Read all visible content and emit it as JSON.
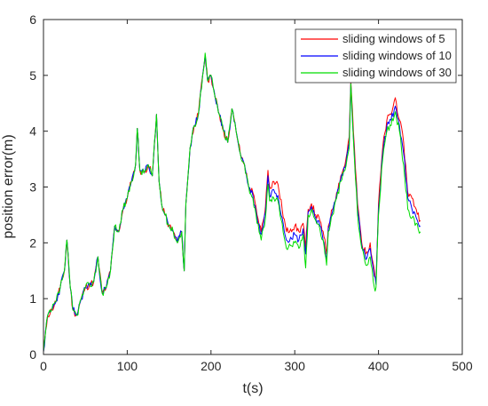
{
  "chart_data": {
    "type": "line",
    "title": "",
    "xlabel": "t(s)",
    "ylabel": "position error(m)",
    "xlim": [
      0,
      500
    ],
    "ylim": [
      0,
      6
    ],
    "xticks": [
      0,
      100,
      200,
      300,
      400,
      500
    ],
    "yticks": [
      0,
      1,
      2,
      3,
      4,
      5,
      6
    ],
    "grid": false,
    "legend_position": "top-right",
    "x": [
      0,
      5,
      10,
      15,
      20,
      25,
      28,
      32,
      35,
      40,
      45,
      50,
      55,
      60,
      65,
      70,
      75,
      80,
      85,
      90,
      95,
      100,
      105,
      110,
      112,
      115,
      120,
      125,
      130,
      135,
      138,
      141,
      145,
      150,
      155,
      160,
      165,
      168,
      170,
      175,
      180,
      185,
      190,
      193,
      196,
      200,
      205,
      210,
      215,
      220,
      225,
      230,
      235,
      240,
      245,
      250,
      255,
      260,
      265,
      268,
      270,
      275,
      280,
      285,
      290,
      295,
      300,
      305,
      310,
      313,
      316,
      320,
      325,
      330,
      335,
      338,
      340,
      345,
      350,
      355,
      360,
      365,
      367,
      370,
      375,
      380,
      385,
      390,
      395,
      397,
      400,
      405,
      410,
      415,
      420,
      425,
      430,
      435,
      440,
      445,
      450
    ],
    "series": [
      {
        "name": "sliding windows of 5",
        "color": "#ff0000",
        "values": [
          0.05,
          0.7,
          0.8,
          0.95,
          1.2,
          1.5,
          2.05,
          1.2,
          0.8,
          0.7,
          1.0,
          1.2,
          1.25,
          1.3,
          1.75,
          1.1,
          1.2,
          1.5,
          2.3,
          2.2,
          2.6,
          2.8,
          3.1,
          3.4,
          4.05,
          3.3,
          3.25,
          3.4,
          3.2,
          4.3,
          3.1,
          2.7,
          2.5,
          2.3,
          2.2,
          2.0,
          2.2,
          1.5,
          2.7,
          3.7,
          4.1,
          4.3,
          5.0,
          5.35,
          4.9,
          5.0,
          4.6,
          4.3,
          4.0,
          3.8,
          4.4,
          4.0,
          3.6,
          3.4,
          3.0,
          2.9,
          2.5,
          2.2,
          2.65,
          3.3,
          3.0,
          3.1,
          3.05,
          2.6,
          2.2,
          2.25,
          2.3,
          2.2,
          2.35,
          1.9,
          2.6,
          2.7,
          2.5,
          2.4,
          2.1,
          1.8,
          2.3,
          2.6,
          2.9,
          3.2,
          3.4,
          3.9,
          4.9,
          4.0,
          2.7,
          2.0,
          1.8,
          2.0,
          1.5,
          1.3,
          2.7,
          3.7,
          4.2,
          4.3,
          4.6,
          4.2,
          3.8,
          2.9,
          2.8,
          2.6,
          2.4
        ]
      },
      {
        "name": "sliding windows of 10",
        "color": "#0000ff",
        "values": [
          0.05,
          0.7,
          0.8,
          0.95,
          1.2,
          1.5,
          2.05,
          1.2,
          0.8,
          0.7,
          1.0,
          1.2,
          1.25,
          1.3,
          1.75,
          1.1,
          1.2,
          1.5,
          2.3,
          2.2,
          2.6,
          2.8,
          3.1,
          3.4,
          4.05,
          3.3,
          3.25,
          3.4,
          3.2,
          4.3,
          3.1,
          2.7,
          2.5,
          2.3,
          2.2,
          2.0,
          2.2,
          1.5,
          2.7,
          3.7,
          4.1,
          4.3,
          5.0,
          5.35,
          4.9,
          5.0,
          4.6,
          4.3,
          4.0,
          3.8,
          4.4,
          4.0,
          3.6,
          3.4,
          3.0,
          2.85,
          2.45,
          2.15,
          2.55,
          3.2,
          2.85,
          2.95,
          2.85,
          2.45,
          2.05,
          2.1,
          2.15,
          2.05,
          2.25,
          1.8,
          2.55,
          2.65,
          2.45,
          2.3,
          2.0,
          1.7,
          2.25,
          2.55,
          2.85,
          3.15,
          3.35,
          3.8,
          4.85,
          3.9,
          2.6,
          1.95,
          1.7,
          1.9,
          1.4,
          1.25,
          2.6,
          3.6,
          4.1,
          4.2,
          4.45,
          4.1,
          3.6,
          2.8,
          2.6,
          2.45,
          2.3
        ]
      },
      {
        "name": "sliding windows of 30",
        "color": "#00dd00",
        "values": [
          0.05,
          0.7,
          0.8,
          0.95,
          1.2,
          1.5,
          2.05,
          1.2,
          0.8,
          0.7,
          1.0,
          1.2,
          1.25,
          1.3,
          1.75,
          1.1,
          1.2,
          1.5,
          2.3,
          2.2,
          2.6,
          2.8,
          3.1,
          3.4,
          4.05,
          3.3,
          3.25,
          3.4,
          3.2,
          4.3,
          3.1,
          2.7,
          2.5,
          2.3,
          2.2,
          2.0,
          2.2,
          1.5,
          2.7,
          3.7,
          4.1,
          4.3,
          5.0,
          5.4,
          4.9,
          5.0,
          4.6,
          4.3,
          4.0,
          3.8,
          4.4,
          4.0,
          3.6,
          3.4,
          3.0,
          2.8,
          2.35,
          2.05,
          2.45,
          3.05,
          2.75,
          2.8,
          2.75,
          2.35,
          1.9,
          1.95,
          2.0,
          1.9,
          2.15,
          1.55,
          2.5,
          2.6,
          2.4,
          2.25,
          1.95,
          1.6,
          2.2,
          2.5,
          2.8,
          3.1,
          3.3,
          3.7,
          4.85,
          3.85,
          2.5,
          1.9,
          1.6,
          1.75,
          1.2,
          1.2,
          2.5,
          3.5,
          4.0,
          4.1,
          4.35,
          4.0,
          3.4,
          2.6,
          2.45,
          2.35,
          2.2
        ]
      }
    ]
  }
}
